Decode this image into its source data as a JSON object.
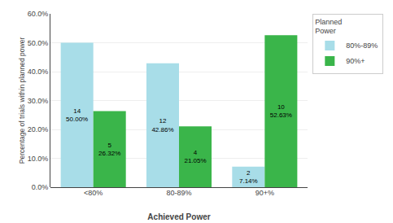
{
  "chart_data": {
    "type": "bar",
    "categories": [
      "<80%",
      "80-89%",
      "90+%"
    ],
    "series": [
      {
        "name": "80%-89%",
        "color": "#a8dde8",
        "values": [
          50.0,
          42.86,
          7.14
        ],
        "counts": [
          14,
          12,
          2
        ],
        "value_labels": [
          "50.00%",
          "42.86%",
          "7.14%"
        ]
      },
      {
        "name": "90%+",
        "color": "#3ab54a",
        "values": [
          26.32,
          21.05,
          52.63
        ],
        "counts": [
          5,
          4,
          10
        ],
        "value_labels": [
          "26.32%",
          "21.05%",
          "52.63%"
        ]
      }
    ],
    "xlabel": "Achieved Power",
    "ylabel": "Percentage of trials within planned power",
    "legend_title": "Planned\nPower",
    "legend": "upper right",
    "ylim": [
      0,
      60
    ],
    "yticks": [
      {
        "value": 0,
        "label": "0.0%"
      },
      {
        "value": 10,
        "label": "10.0%"
      },
      {
        "value": 20,
        "label": "20.0%"
      },
      {
        "value": 30,
        "label": "30.0%"
      },
      {
        "value": 40,
        "label": "40.0%"
      },
      {
        "value": 50,
        "label": "50.0%"
      },
      {
        "value": 60,
        "label": "60.0%"
      }
    ],
    "grid": true,
    "data_labels": true
  }
}
